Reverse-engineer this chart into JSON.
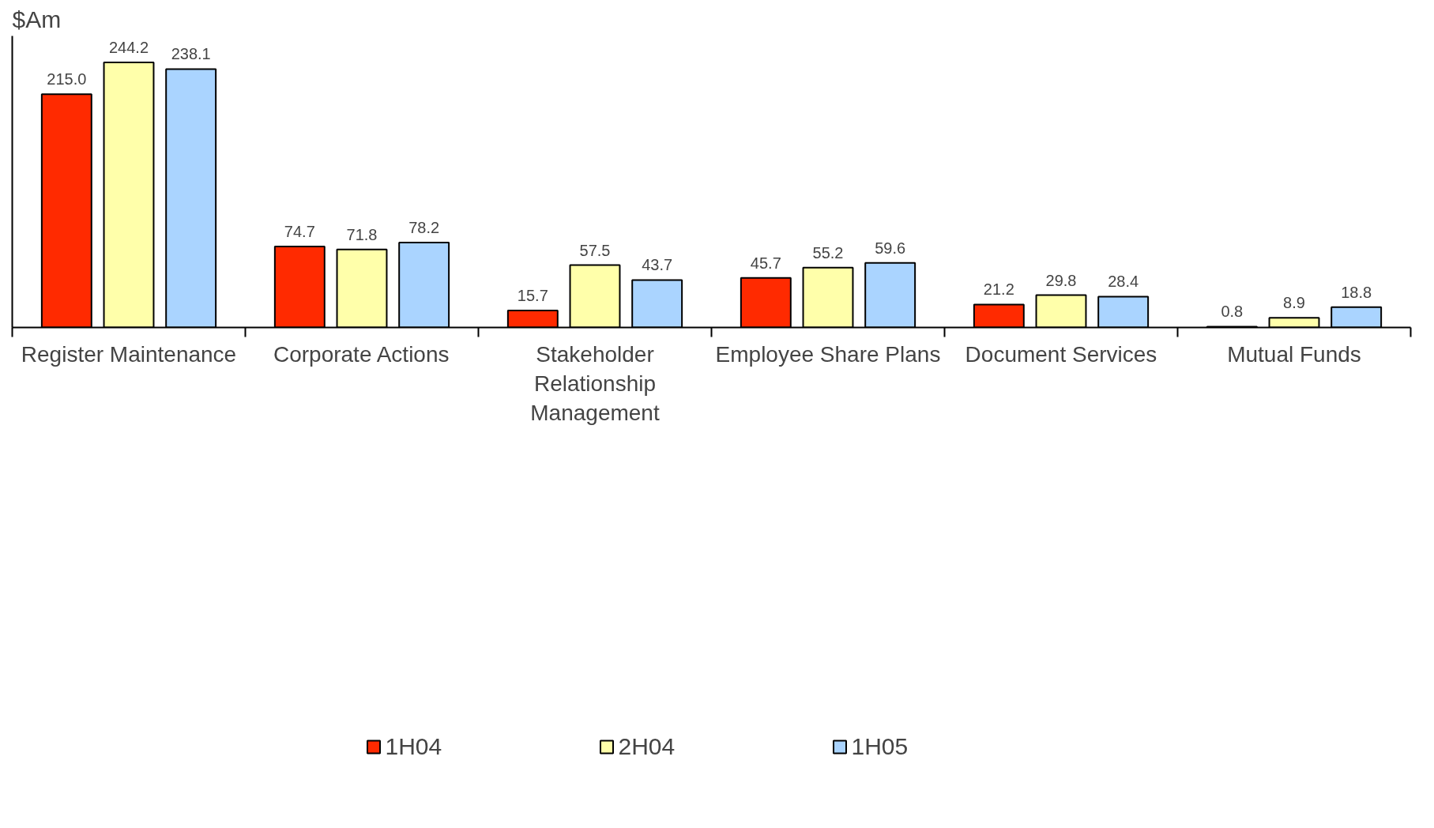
{
  "chart_data": {
    "type": "bar",
    "ylabel": "$Am",
    "categories": [
      "Register Maintenance",
      "Corporate Actions",
      "Stakeholder Relationship Management",
      "Employee Share Plans",
      "Document Services",
      "Mutual Funds"
    ],
    "series": [
      {
        "name": "1H04",
        "color": "#ff2a00",
        "values": [
          215.0,
          74.7,
          15.7,
          45.7,
          21.2,
          0.8
        ],
        "value_labels": [
          "215.0",
          "74.7",
          "15.7",
          "45.7",
          "21.2",
          "0.8"
        ]
      },
      {
        "name": "2H04",
        "color": "#ffffaa",
        "values": [
          244.2,
          71.8,
          57.5,
          55.2,
          29.8,
          8.9
        ],
        "value_labels": [
          "244.2",
          "71.8",
          "57.5",
          "55.2",
          "29.8",
          "8.9"
        ]
      },
      {
        "name": "1H05",
        "color": "#aad4ff",
        "values": [
          238.1,
          78.2,
          43.7,
          59.6,
          28.4,
          18.8
        ],
        "value_labels": [
          "238.1",
          "78.2",
          "43.7",
          "59.6",
          "28.4",
          "18.8"
        ]
      }
    ],
    "grid": false,
    "legend": "bottom"
  }
}
